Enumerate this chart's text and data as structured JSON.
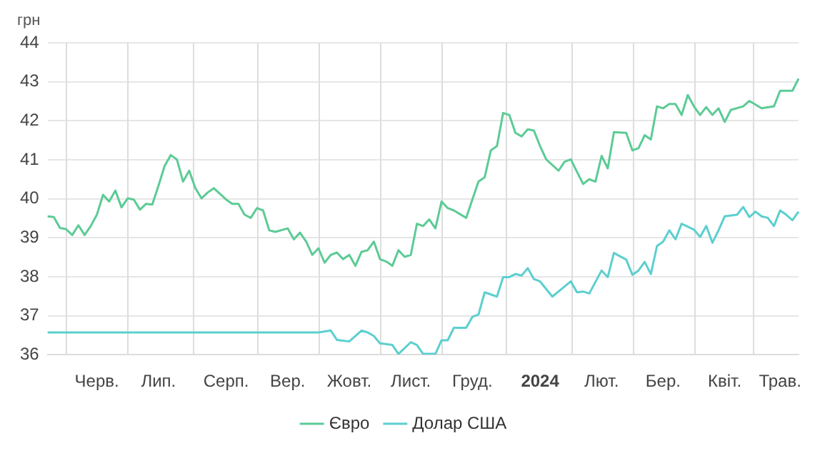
{
  "chart_data": {
    "type": "line",
    "ylabel": "грн",
    "categories": [
      null,
      null,
      null,
      null,
      null,
      null,
      null,
      null,
      "Черв.",
      null,
      null,
      null,
      null,
      null,
      null,
      null,
      null,
      null,
      "Лип.",
      null,
      null,
      null,
      null,
      null,
      null,
      null,
      null,
      null,
      null,
      "Серп.",
      null,
      null,
      null,
      null,
      null,
      null,
      null,
      null,
      null,
      "Вер.",
      null,
      null,
      null,
      null,
      null,
      null,
      null,
      null,
      null,
      "Жовт.",
      null,
      null,
      null,
      null,
      null,
      null,
      null,
      null,
      null,
      "Лист.",
      null,
      null,
      null,
      null,
      null,
      null,
      null,
      null,
      null,
      "Груд.",
      null,
      null,
      null,
      null,
      null,
      null,
      null,
      null,
      null,
      null,
      "2024",
      null,
      null,
      null,
      null,
      null,
      null,
      null,
      null,
      null,
      "Лют.",
      null,
      null,
      null,
      null,
      null,
      null,
      null,
      null,
      null,
      "Бер.",
      null,
      null,
      null,
      null,
      null,
      null,
      null,
      null,
      null,
      "Квіт.",
      null,
      null,
      null,
      null,
      null,
      null,
      null,
      null,
      "Трав.",
      null,
      null,
      null
    ],
    "ylim": [
      36,
      44
    ],
    "yticks": [
      36,
      37,
      38,
      39,
      40,
      41,
      42,
      43,
      44
    ],
    "grid": true,
    "legend": "bottom",
    "marker": "none",
    "line_style": "solid",
    "series": [
      {
        "name": "Євро",
        "color": "#5ccb95",
        "values": [
          39.55,
          39.53,
          39.25,
          39.22,
          39.07,
          39.32,
          39.07,
          39.3,
          39.59,
          40.1,
          39.93,
          40.21,
          39.78,
          40.01,
          39.98,
          39.72,
          39.87,
          39.85,
          40.33,
          40.84,
          41.12,
          41.01,
          40.44,
          40.72,
          40.27,
          40.01,
          40.16,
          40.27,
          null,
          39.98,
          39.87,
          39.87,
          39.59,
          39.51,
          39.76,
          39.7,
          39.19,
          39.15,
          null,
          39.24,
          38.96,
          39.13,
          38.9,
          38.56,
          38.73,
          38.36,
          38.56,
          38.62,
          38.45,
          38.56,
          38.28,
          38.64,
          38.68,
          38.9,
          38.45,
          38.39,
          38.28,
          38.68,
          38.51,
          38.56,
          39.36,
          39.3,
          39.47,
          39.24,
          39.93,
          39.76,
          39.7,
          null,
          39.51,
          39.98,
          40.44,
          40.55,
          41.24,
          41.35,
          42.2,
          42.15,
          41.69,
          41.6,
          41.78,
          41.75,
          41.35,
          41.01,
          null,
          40.72,
          40.95,
          41.01,
          40.69,
          40.38,
          40.5,
          40.44,
          41.1,
          40.78,
          41.71,
          null,
          41.69,
          41.24,
          41.3,
          41.63,
          41.52,
          42.37,
          42.32,
          42.43,
          42.43,
          42.15,
          42.66,
          42.37,
          42.15,
          42.35,
          42.15,
          42.32,
          41.97,
          42.28,
          null,
          42.37,
          42.51,
          null,
          42.32,
          null,
          42.37,
          42.77,
          null,
          42.77,
          43.08
        ]
      },
      {
        "name": "Долар США",
        "color": "#5ccfd0",
        "values": [
          36.57,
          36.57,
          36.57,
          36.57,
          36.57,
          36.57,
          36.57,
          36.57,
          36.57,
          36.57,
          36.57,
          36.57,
          36.57,
          36.57,
          36.57,
          36.57,
          36.57,
          36.57,
          36.57,
          36.57,
          36.57,
          36.57,
          36.57,
          36.57,
          36.57,
          36.57,
          36.57,
          36.57,
          36.57,
          36.57,
          36.57,
          36.57,
          36.57,
          36.57,
          36.57,
          36.57,
          36.57,
          36.57,
          36.57,
          36.57,
          36.57,
          36.57,
          36.57,
          36.57,
          36.57,
          null,
          36.62,
          36.38,
          null,
          36.34,
          null,
          36.62,
          36.57,
          36.48,
          36.29,
          null,
          36.25,
          36.02,
          null,
          36.32,
          36.25,
          36.02,
          null,
          36.02,
          36.37,
          36.37,
          36.69,
          null,
          36.69,
          36.97,
          37.03,
          37.6,
          null,
          37.49,
          37.99,
          37.99,
          38.07,
          38.03,
          38.22,
          37.94,
          37.88,
          null,
          37.49,
          37.62,
          null,
          37.88,
          37.6,
          37.62,
          37.57,
          null,
          38.16,
          37.99,
          38.61,
          null,
          38.44,
          38.05,
          38.16,
          38.38,
          38.07,
          38.79,
          38.9,
          39.19,
          38.96,
          39.36,
          null,
          39.21,
          39.02,
          39.3,
          38.87,
          39.19,
          39.55,
          null,
          39.59,
          39.79,
          39.53,
          39.67,
          39.55,
          39.51,
          39.3,
          39.7,
          39.59,
          39.45,
          39.67
        ]
      }
    ]
  }
}
